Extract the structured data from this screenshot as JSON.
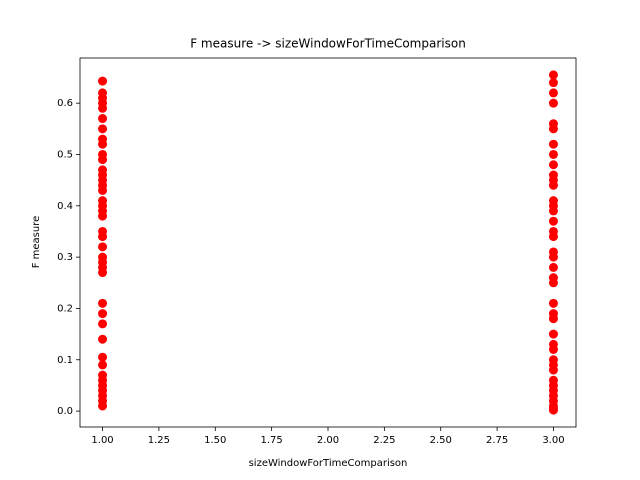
{
  "chart_data": {
    "type": "scatter",
    "title": "F measure -> sizeWindowForTimeComparison",
    "x_label": "sizeWindowForTimeComparison",
    "y_label": "F measure",
    "xlim": [
      0.9,
      3.1
    ],
    "ylim": [
      -0.031,
      0.688
    ],
    "xticks": [
      {
        "value": 1,
        "label": "1.00"
      },
      1.25,
      {
        "value": 1.5,
        "label": "1.50"
      },
      1.75,
      {
        "value": 2,
        "label": "2.00"
      },
      2.25,
      {
        "value": 2.5,
        "label": "2.50"
      },
      2.75,
      {
        "value": 3,
        "label": "3.00"
      }
    ],
    "yticks": [
      {
        "value": 0,
        "label": "0.0"
      },
      0.1,
      0.2,
      0.3,
      0.4,
      0.5,
      0.6
    ],
    "series": [
      {
        "color": "#ff0000",
        "x": [
          1,
          1,
          1,
          1,
          1,
          1,
          1,
          1,
          1,
          1,
          1,
          1,
          1,
          1,
          1,
          1,
          1,
          1,
          1,
          1,
          1,
          1,
          1,
          1,
          1,
          1,
          1,
          1,
          1,
          1,
          1,
          1,
          1,
          1,
          1,
          1,
          1,
          1,
          1,
          1
        ],
        "values": [
          0.643,
          0.62,
          0.61,
          0.6,
          0.59,
          0.57,
          0.55,
          0.53,
          0.52,
          0.5,
          0.49,
          0.47,
          0.46,
          0.45,
          0.44,
          0.43,
          0.41,
          0.4,
          0.39,
          0.38,
          0.35,
          0.34,
          0.32,
          0.3,
          0.29,
          0.28,
          0.27,
          0.21,
          0.19,
          0.17,
          0.14,
          0.105,
          0.09,
          0.07,
          0.06,
          0.05,
          0.04,
          0.03,
          0.02,
          0.01
        ]
      },
      {
        "color": "#ff0000",
        "x": [
          3,
          3,
          3,
          3,
          3,
          3,
          3,
          3,
          3,
          3,
          3,
          3,
          3,
          3,
          3,
          3,
          3,
          3,
          3,
          3,
          3,
          3,
          3,
          3,
          3,
          3,
          3,
          3,
          3,
          3,
          3,
          3,
          3,
          3,
          3,
          3,
          3,
          3,
          3,
          3
        ],
        "values": [
          0.655,
          0.64,
          0.62,
          0.6,
          0.56,
          0.55,
          0.52,
          0.5,
          0.48,
          0.46,
          0.45,
          0.44,
          0.41,
          0.4,
          0.39,
          0.37,
          0.35,
          0.34,
          0.31,
          0.3,
          0.28,
          0.26,
          0.25,
          0.21,
          0.19,
          0.18,
          0.15,
          0.13,
          0.12,
          0.1,
          0.09,
          0.08,
          0.06,
          0.05,
          0.04,
          0.03,
          0.02,
          0.01,
          0.005,
          0.002
        ]
      }
    ]
  }
}
